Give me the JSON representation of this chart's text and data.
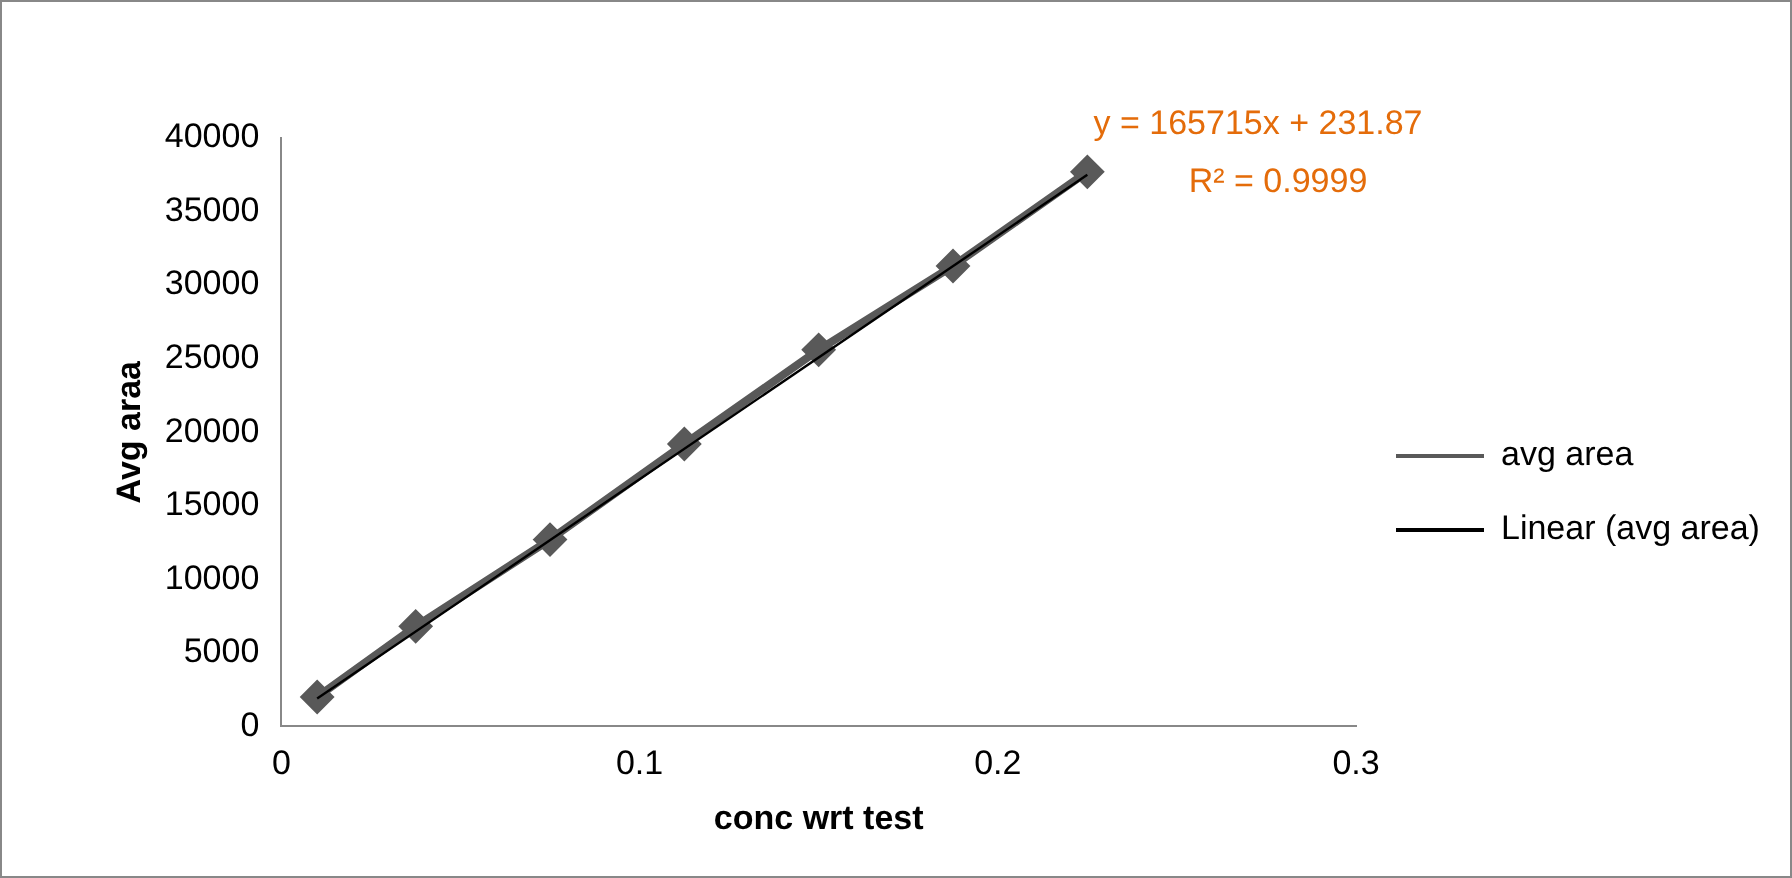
{
  "chart_data": {
    "type": "line",
    "xlabel": "conc wrt test",
    "ylabel": "Avg araa",
    "xlim": [
      0,
      0.3
    ],
    "xticks": [
      0,
      0.1,
      0.2,
      0.3
    ],
    "ylim": [
      0,
      40000
    ],
    "yticks": [
      0,
      5000,
      10000,
      15000,
      20000,
      25000,
      30000,
      35000,
      40000
    ],
    "series": [
      {
        "name": "avg area",
        "color": "#595959",
        "x": [
          0.01,
          0.0375,
          0.075,
          0.1125,
          0.15,
          0.1875,
          0.225
        ],
        "values": [
          2000,
          6800,
          12700,
          19200,
          25600,
          31300,
          37700
        ],
        "marker": "diamond"
      },
      {
        "name": "Linear (avg area)",
        "color": "#000000",
        "x": [
          0.01,
          0.225
        ],
        "values": [
          1900,
          37500
        ],
        "marker": "none"
      }
    ],
    "annotations": [
      "y = 165715x + 231.87",
      "R² = 0.9999"
    ],
    "grid": false,
    "legend": "right"
  }
}
